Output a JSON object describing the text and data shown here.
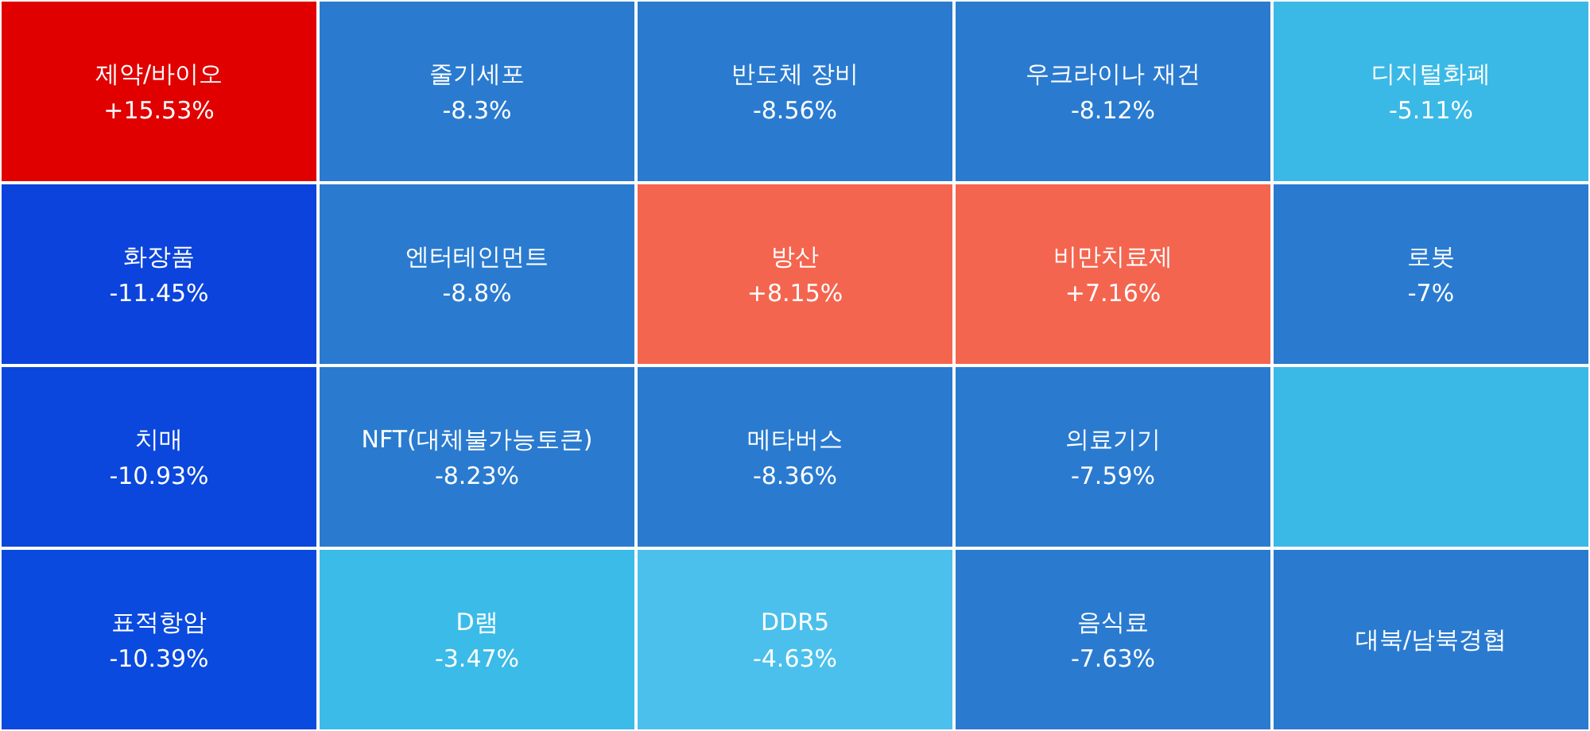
{
  "chart_data": {
    "type": "other",
    "categories": [
      "제약/바이오",
      "화장품",
      "치매",
      "표적항암",
      "줄기세포",
      "엔터테인먼트",
      "NFT(대체불가능토큰)",
      "D램",
      "반도체 장비",
      "방산",
      "메타버스",
      "DDR5",
      "우크라이나 재건",
      "비만치료제",
      "의료기기",
      "음식료",
      "디지털화폐",
      "로봇",
      null,
      "대북/남북경협"
    ],
    "values": [
      15.53,
      -11.45,
      -10.93,
      -10.39,
      -8.3,
      -8.8,
      -8.23,
      -3.47,
      -8.56,
      8.15,
      -8.36,
      -4.63,
      -8.12,
      7.16,
      -7.59,
      -7.63,
      -5.11,
      -7,
      null,
      null
    ],
    "value_labels": [
      "+15.53%",
      "-11.45%",
      "-10.93%",
      "-10.39%",
      "-8.3%",
      "-8.8%",
      "-8.23%",
      "-3.47%",
      "-8.56%",
      "+8.15%",
      "-8.36%",
      "-4.63%",
      "-8.12%",
      "+7.16%",
      "-7.59%",
      "-7.63%",
      "-5.11%",
      "-7%",
      null,
      null
    ],
    "colors": [
      "#e00000",
      "#0b43dc",
      "#0b47dc",
      "#0a4ade",
      "#2a7bd0",
      "#2a7bd0",
      "#2a7bd0",
      "#3bbbe8",
      "#2a7bd0",
      "#f4654f",
      "#2a7bd0",
      "#4cc0ec",
      "#2a7bd0",
      "#f4654f",
      "#2a7bd0",
      "#2a7bd0",
      "#3bb9e6",
      "#2a7bd0",
      "#3bb9e6",
      "#2a7bd0"
    ]
  }
}
